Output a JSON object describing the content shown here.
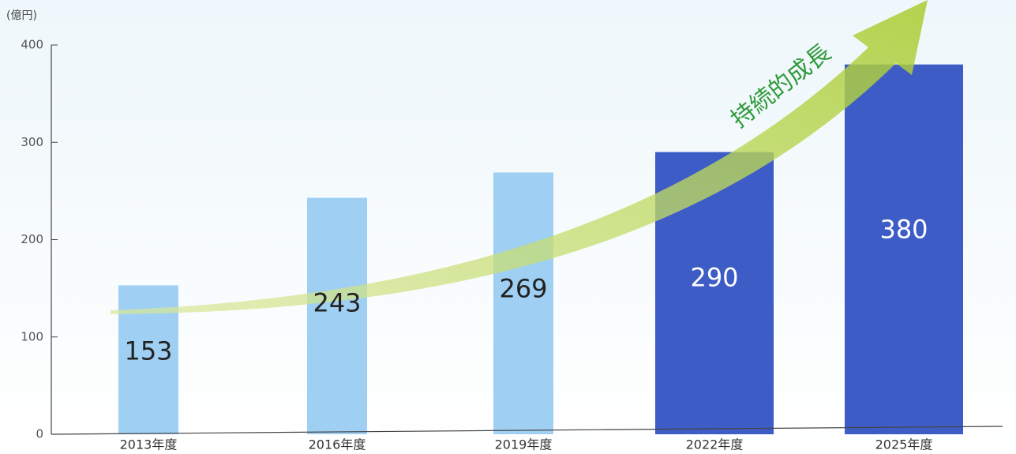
{
  "chart_data": {
    "type": "bar",
    "unit_label": "(億円)",
    "annotation": "持続的成長",
    "categories": [
      "2013年度",
      "2016年度",
      "2019年度",
      "2022年度",
      "2025年度"
    ],
    "values": [
      153,
      243,
      269,
      290,
      380
    ],
    "colors": [
      "#9fcff3",
      "#9fcff3",
      "#9fcff3",
      "#3d5cc6",
      "#3d5cc6"
    ],
    "ylim": [
      0,
      400
    ],
    "yticks": [
      0,
      100,
      200,
      300,
      400
    ],
    "grid": false
  }
}
